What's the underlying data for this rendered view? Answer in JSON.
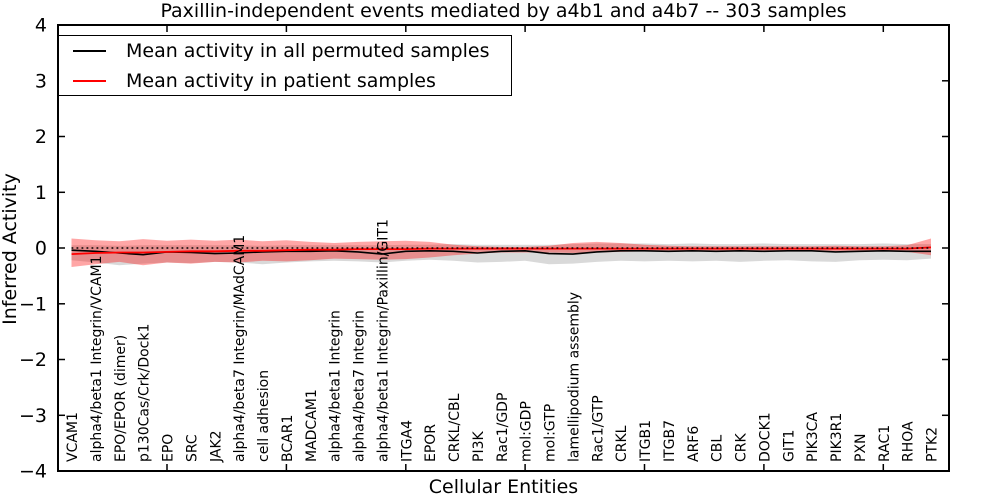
{
  "axes": {
    "ylim": [
      -4,
      4
    ],
    "ytick_values": [
      4,
      3,
      2,
      1,
      0,
      -1,
      -2,
      -3,
      -4
    ],
    "ytick_labels": [
      "4",
      "3",
      "2",
      "1",
      "0",
      "−1",
      "−2",
      "−3",
      "−4"
    ],
    "xtick_positions": [
      5,
      10,
      15,
      20,
      25,
      30,
      35
    ]
  },
  "chart_data": {
    "type": "line",
    "title": "Paxillin-independent events mediated by a4b1 and a4b7 -- 303 samples",
    "xlabel": "Cellular Entities",
    "ylabel": "Inferred Activity",
    "ylim": [
      -4,
      4
    ],
    "legend_position": "upper left",
    "grid": false,
    "categories": [
      "VCAM1",
      "alpha4/beta1 Integrin/VCAM1",
      "EPO/EPOR (dimer)",
      "p130Cas/Crk/Dock1",
      "EPO",
      "SRC",
      "JAK2",
      "alpha4/beta7 Integrin/MAdCAM1",
      "cell adhesion",
      "BCAR1",
      "MADCAM1",
      "alpha4/beta1 Integrin",
      "alpha4/beta7 Integrin",
      "alpha4/beta1 Integrin/Paxillin/GIT1",
      "ITGA4",
      "EPOR",
      "CRKL/CBL",
      "PI3K",
      "Rac1/GDP",
      "mol:GDP",
      "mol:GTP",
      "lamellipodium assembly",
      "Rac1/GTP",
      "CRKL",
      "ITGB1",
      "ITGB7",
      "ARF6",
      "CBL",
      "CRK",
      "DOCK1",
      "GIT1",
      "PIK3CA",
      "PIK3R1",
      "PXN",
      "RAC1",
      "RHOA",
      "PTK2"
    ],
    "series": [
      {
        "name": "Mean activity in all permuted samples",
        "color": "#000000",
        "style": "solid",
        "values": [
          -0.04,
          -0.06,
          -0.09,
          -0.12,
          -0.07,
          -0.08,
          -0.1,
          -0.09,
          -0.07,
          -0.06,
          -0.06,
          -0.05,
          -0.07,
          -0.11,
          -0.06,
          -0.05,
          -0.06,
          -0.09,
          -0.06,
          -0.05,
          -0.1,
          -0.11,
          -0.07,
          -0.05,
          -0.05,
          -0.06,
          -0.05,
          -0.06,
          -0.05,
          -0.06,
          -0.05,
          -0.05,
          -0.07,
          -0.06,
          -0.05,
          -0.06,
          -0.06
        ]
      },
      {
        "name": "Mean activity in patient samples",
        "color": "#ff0000",
        "style": "solid",
        "values": [
          -0.11,
          -0.09,
          -0.08,
          -0.08,
          -0.07,
          -0.06,
          -0.06,
          -0.05,
          -0.05,
          -0.04,
          -0.03,
          -0.03,
          -0.02,
          -0.02,
          -0.02,
          -0.01,
          -0.01,
          -0.01,
          -0.01,
          -0.01,
          -0.01,
          -0.01,
          -0.01,
          -0.01,
          -0.01,
          -0.01,
          -0.01,
          -0.01,
          -0.01,
          -0.01,
          -0.01,
          -0.01,
          -0.01,
          -0.01,
          -0.01,
          -0.01,
          0.01
        ]
      }
    ],
    "bands": [
      {
        "name": "permuted samples range",
        "color": "rgba(0,0,0,0.15)",
        "upper": [
          0.05,
          0.05,
          0.04,
          0.05,
          0.05,
          0.05,
          0.05,
          0.05,
          0.04,
          0.05,
          0.05,
          0.05,
          0.05,
          0.05,
          0.06,
          0.06,
          0.07,
          0.06,
          0.06,
          0.06,
          0.06,
          0.07,
          0.08,
          0.08,
          0.08,
          0.07,
          0.08,
          0.07,
          0.07,
          0.08,
          0.07,
          0.07,
          0.07,
          0.07,
          0.08,
          0.07,
          0.07
        ],
        "lower": [
          -0.22,
          -0.26,
          -0.31,
          -0.28,
          -0.26,
          -0.27,
          -0.25,
          -0.26,
          -0.29,
          -0.26,
          -0.24,
          -0.23,
          -0.24,
          -0.26,
          -0.23,
          -0.21,
          -0.23,
          -0.26,
          -0.25,
          -0.23,
          -0.29,
          -0.28,
          -0.25,
          -0.23,
          -0.24,
          -0.23,
          -0.24,
          -0.23,
          -0.25,
          -0.23,
          -0.22,
          -0.24,
          -0.25,
          -0.22,
          -0.21,
          -0.22,
          -0.19
        ]
      },
      {
        "name": "patient samples range",
        "color": "rgba(255,0,0,0.35)",
        "upper": [
          0.17,
          0.14,
          0.12,
          0.16,
          0.13,
          0.15,
          0.13,
          0.15,
          0.12,
          0.14,
          0.11,
          0.09,
          0.11,
          0.12,
          0.13,
          0.11,
          0.06,
          0.03,
          0.02,
          0.02,
          0.04,
          0.09,
          0.11,
          0.09,
          0.06,
          0.04,
          0.03,
          0.03,
          0.03,
          0.03,
          0.03,
          0.03,
          0.04,
          0.03,
          0.03,
          0.05,
          0.17
        ],
        "lower": [
          -0.34,
          -0.29,
          -0.25,
          -0.31,
          -0.26,
          -0.28,
          -0.25,
          -0.26,
          -0.23,
          -0.24,
          -0.22,
          -0.19,
          -0.2,
          -0.21,
          -0.2,
          -0.17,
          -0.13,
          -0.1,
          -0.08,
          -0.08,
          -0.08,
          -0.09,
          -0.08,
          -0.07,
          -0.06,
          -0.05,
          -0.05,
          -0.05,
          -0.05,
          -0.05,
          -0.05,
          -0.05,
          -0.06,
          -0.05,
          -0.05,
          -0.07,
          -0.13
        ]
      }
    ],
    "reference_line": {
      "y": 0,
      "style": "dotted",
      "color": "#000000"
    }
  }
}
